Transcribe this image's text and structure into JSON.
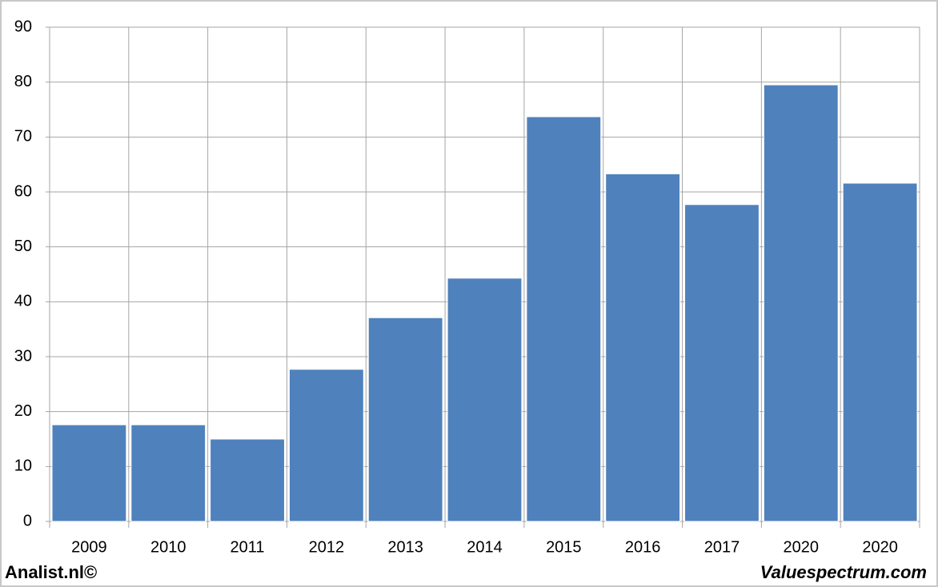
{
  "chart_data": {
    "type": "bar",
    "categories": [
      "2009",
      "2010",
      "2011",
      "2012",
      "2013",
      "2014",
      "2015",
      "2016",
      "2017",
      "2020",
      "2020"
    ],
    "values": [
      17.6,
      17.6,
      15.0,
      27.7,
      37.1,
      44.3,
      73.7,
      63.3,
      57.7,
      79.5,
      61.6
    ],
    "color": "#4f81bd",
    "ylim": [
      0,
      90
    ],
    "yticks": [
      0,
      10,
      20,
      30,
      40,
      50,
      60,
      70,
      80,
      90
    ],
    "grid": true
  },
  "footer": {
    "left": "Analist.nl©",
    "right": "Valuespectrum.com"
  }
}
